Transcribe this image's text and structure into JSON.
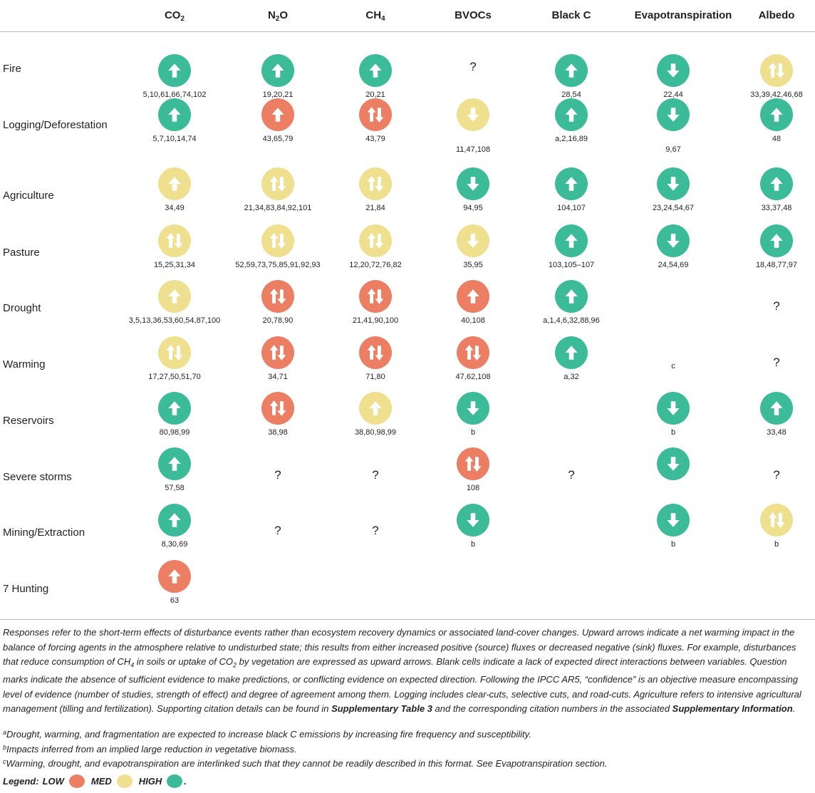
{
  "colors": {
    "low": "#ec7e63",
    "med": "#efe08f",
    "high": "#3cbb99",
    "arrow": "#ffffff"
  },
  "headers": {
    "co2": {
      "main": "CO",
      "sub": "2"
    },
    "n2o": {
      "main": "N",
      "sub": "2",
      "tail": "O"
    },
    "ch4": {
      "main": "CH",
      "sub": "4"
    },
    "bvocs": "BVOCs",
    "blackc": "Black C",
    "evapo": "Evapotranspiration",
    "albedo": "Albedo"
  },
  "rows": [
    {
      "label": "Fire",
      "cells": [
        {
          "conf": "high",
          "dir": "up",
          "cite": "5,10,61,66,74,102"
        },
        {
          "conf": "high",
          "dir": "up",
          "cite": "19,20,21"
        },
        {
          "conf": "high",
          "dir": "up",
          "cite": "20,21"
        },
        {
          "q": "?"
        },
        {
          "conf": "high",
          "dir": "up",
          "cite": "28,54"
        },
        {
          "conf": "high",
          "dir": "down",
          "cite": "22,44"
        },
        {
          "conf": "med",
          "dir": "both",
          "cite": "33,39,42,46,68"
        }
      ]
    },
    {
      "label": "Logging/Deforestation",
      "cells": [
        {
          "conf": "high",
          "dir": "up",
          "cite": "5,7,10,14,74"
        },
        {
          "conf": "low",
          "dir": "up",
          "cite": "43,65,79"
        },
        {
          "conf": "low",
          "dir": "both",
          "cite": "43,79"
        },
        {
          "conf": "med",
          "dir": "down",
          "cite": "11,47,108",
          "gap": true
        },
        {
          "conf": "high",
          "dir": "up",
          "cite": "a,2,16,89"
        },
        {
          "conf": "high",
          "dir": "down",
          "cite": "9,67",
          "gap": true
        },
        {
          "conf": "high",
          "dir": "up",
          "cite": "48"
        }
      ]
    },
    {
      "label": "Agriculture",
      "cells": [
        {
          "conf": "med",
          "dir": "up",
          "cite": "34,49"
        },
        {
          "conf": "med",
          "dir": "both",
          "cite": "21,34,83,84,92,101"
        },
        {
          "conf": "med",
          "dir": "both",
          "cite": "21,84"
        },
        {
          "conf": "high",
          "dir": "down",
          "cite": "94,95"
        },
        {
          "conf": "high",
          "dir": "up",
          "cite": "104,107"
        },
        {
          "conf": "high",
          "dir": "down",
          "cite": "23,24,54,67"
        },
        {
          "conf": "high",
          "dir": "up",
          "cite": "33,37,48"
        }
      ]
    },
    {
      "label": "Pasture",
      "cells": [
        {
          "conf": "med",
          "dir": "both",
          "cite": "15,25,31,34"
        },
        {
          "conf": "med",
          "dir": "both",
          "cite": "52,59,73,75,85,91,92,93"
        },
        {
          "conf": "med",
          "dir": "both",
          "cite": "12,20,72,76,82"
        },
        {
          "conf": "med",
          "dir": "down",
          "cite": "35,95"
        },
        {
          "conf": "high",
          "dir": "up",
          "cite": "103,105–107"
        },
        {
          "conf": "high",
          "dir": "down",
          "cite": "24,54,69"
        },
        {
          "conf": "high",
          "dir": "up",
          "cite": "18,48,77,97"
        }
      ]
    },
    {
      "label": "Drought",
      "cells": [
        {
          "conf": "med",
          "dir": "up",
          "cite": "3,5,13,36,53,60,54,87,100"
        },
        {
          "conf": "low",
          "dir": "both",
          "cite": "20,78,90"
        },
        {
          "conf": "low",
          "dir": "both",
          "cite": "21,41,90,100"
        },
        {
          "conf": "low",
          "dir": "up",
          "cite": "40,108"
        },
        {
          "conf": "high",
          "dir": "up",
          "cite": "a,1,4,6,32,88,96"
        },
        {},
        {
          "q": "?"
        }
      ]
    },
    {
      "label": "Warming",
      "cells": [
        {
          "conf": "med",
          "dir": "both",
          "cite": "17,27,50,51,70"
        },
        {
          "conf": "low",
          "dir": "both",
          "cite": "34,71"
        },
        {
          "conf": "low",
          "dir": "both",
          "cite": "71,80"
        },
        {
          "conf": "low",
          "dir": "both",
          "cite": "47,62,108"
        },
        {
          "conf": "high",
          "dir": "up",
          "cite": "a,32"
        },
        {
          "small": "c"
        },
        {
          "q": "?"
        }
      ]
    },
    {
      "label": "Reservoirs",
      "cells": [
        {
          "conf": "high",
          "dir": "up",
          "cite": "80,98,99"
        },
        {
          "conf": "low",
          "dir": "both",
          "cite": "38,98"
        },
        {
          "conf": "med",
          "dir": "up",
          "cite": "38,80,98,99"
        },
        {
          "conf": "high",
          "dir": "down",
          "cite": "b"
        },
        {},
        {
          "conf": "high",
          "dir": "down",
          "cite": "b"
        },
        {
          "conf": "high",
          "dir": "up",
          "cite": "33,48"
        }
      ]
    },
    {
      "label": "Severe storms",
      "cells": [
        {
          "conf": "high",
          "dir": "up",
          "cite": "57,58"
        },
        {
          "q": "?"
        },
        {
          "q": "?"
        },
        {
          "conf": "low",
          "dir": "both",
          "cite": "108"
        },
        {
          "q": "?"
        },
        {
          "conf": "high",
          "dir": "down",
          "cite": ""
        },
        {
          "q": "?"
        }
      ]
    },
    {
      "label": "Mining/Extraction",
      "cells": [
        {
          "conf": "high",
          "dir": "up",
          "cite": "8,30,69"
        },
        {
          "q": "?"
        },
        {
          "q": "?"
        },
        {
          "conf": "high",
          "dir": "down",
          "cite": "b"
        },
        {},
        {
          "conf": "high",
          "dir": "down",
          "cite": "b"
        },
        {
          "conf": "med",
          "dir": "both",
          "cite": "b"
        }
      ]
    },
    {
      "label": "7 Hunting",
      "cells": [
        {
          "conf": "low",
          "dir": "up",
          "cite": "63"
        },
        {},
        {},
        {},
        {},
        {},
        {}
      ]
    }
  ],
  "notes": {
    "p1": "Responses refer to the short-term effects of disturbance events rather than ecosystem recovery dynamics or associated land-cover changes. Upward arrows indicate a net warming impact in the balance of forcing agents in the atmosphere relative to undisturbed state; this results from either increased positive (source) fluxes or decreased negative (sink) fluxes. For example, disturbances that reduce consumption of CH",
    "p1_sub1": "4",
    "p1_b": " in soils or uptake of CO",
    "p1_sub2": "2",
    "p1_c": " by vegetation are expressed as upward arrows. Blank cells indicate a lack of expected direct interactions between variables. Question marks indicate the absence of sufficient evidence to make predictions, or conflicting evidence on expected direction. Following the IPCC AR5, “confidence” is an objective measure encompassing level of evidence (number of studies, strength of effect) and degree of agreement among them. Logging includes clear-cuts, selective cuts, and road-cuts. Agriculture refers to intensive agricultural management (tilling and fertilization). Supporting citation details can be found in ",
    "p1_bold1": "Supplementary Table 3",
    "p1_d": " and the corresponding citation numbers in the associated ",
    "p1_bold2": "Supplementary Information",
    "p1_e": ".",
    "fa_mark": "a",
    "fa": "Drought, warming, and fragmentation are expected to increase black C emissions by increasing fire frequency and susceptibility.",
    "fb_mark": "b",
    "fb": "Impacts inferred from an implied large reduction in vegetative biomass.",
    "fc_mark": "c",
    "fc": "Warming, drought, and evapotranspiration are interlinked such that they cannot be readily described in this format. See Evapotranspiration section.",
    "legend_label": "Legend:",
    "legend_low": "LOW",
    "legend_med": "MED",
    "legend_high": "HIGH",
    "legend_end": "."
  }
}
